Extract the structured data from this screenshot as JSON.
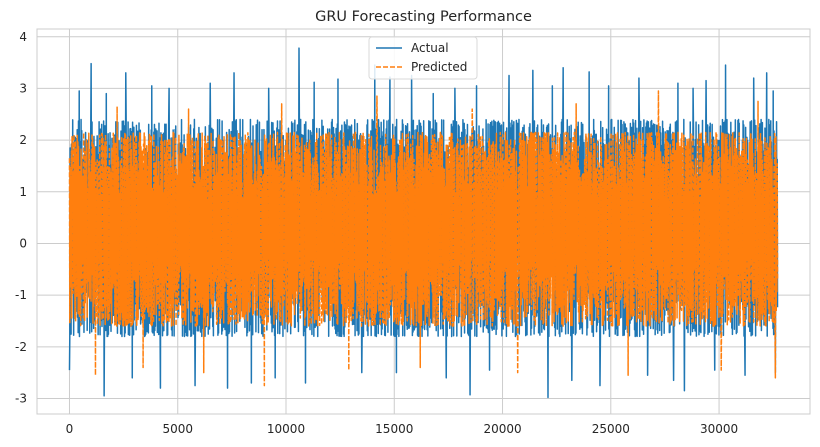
{
  "chart_data": {
    "type": "line",
    "title": "GRU Forecasting Performance",
    "xlabel": "",
    "ylabel": "",
    "xlim": [
      -1500,
      34200
    ],
    "ylim": [
      -3.3,
      4.15
    ],
    "xticks": [
      0,
      5000,
      10000,
      15000,
      20000,
      25000,
      30000
    ],
    "yticks": [
      -3,
      -2,
      -1,
      0,
      1,
      2,
      3,
      4
    ],
    "x_range": [
      0,
      32700
    ],
    "grid": true,
    "legend": "top-center",
    "series": [
      {
        "name": "Actual",
        "color": "#1f77b4",
        "style": "solid",
        "typical_range": [
          -1.8,
          2.4
        ],
        "extremes": {
          "max": 3.78,
          "min": -2.98
        },
        "spikes": [
          [
            450,
            2.95
          ],
          [
            1000,
            3.48
          ],
          [
            1700,
            2.9
          ],
          [
            2600,
            3.3
          ],
          [
            3800,
            3.05
          ],
          [
            4600,
            3.0
          ],
          [
            6500,
            3.1
          ],
          [
            7600,
            3.3
          ],
          [
            9200,
            3.0
          ],
          [
            10600,
            3.78
          ],
          [
            11300,
            3.12
          ],
          [
            12400,
            3.18
          ],
          [
            14100,
            3.45
          ],
          [
            14800,
            3.22
          ],
          [
            15800,
            3.25
          ],
          [
            16800,
            2.9
          ],
          [
            17800,
            3.0
          ],
          [
            18800,
            3.05
          ],
          [
            20300,
            3.25
          ],
          [
            21400,
            3.35
          ],
          [
            22300,
            3.05
          ],
          [
            22800,
            3.4
          ],
          [
            24000,
            3.32
          ],
          [
            24900,
            3.05
          ],
          [
            26300,
            3.2
          ],
          [
            28100,
            3.1
          ],
          [
            28800,
            3.0
          ],
          [
            29400,
            3.15
          ],
          [
            30300,
            3.45
          ],
          [
            31600,
            3.2
          ],
          [
            32200,
            3.3
          ],
          [
            32500,
            2.95
          ],
          [
            0,
            -2.45
          ],
          [
            1600,
            -2.95
          ],
          [
            2900,
            -2.6
          ],
          [
            4200,
            -2.8
          ],
          [
            5800,
            -2.75
          ],
          [
            7300,
            -2.8
          ],
          [
            8400,
            -2.7
          ],
          [
            9500,
            -2.6
          ],
          [
            10900,
            -2.7
          ],
          [
            13500,
            -2.5
          ],
          [
            15100,
            -2.5
          ],
          [
            17400,
            -2.6
          ],
          [
            18500,
            -2.93
          ],
          [
            19400,
            -2.45
          ],
          [
            22100,
            -2.98
          ],
          [
            23200,
            -2.65
          ],
          [
            24500,
            -2.75
          ],
          [
            26700,
            -2.55
          ],
          [
            27900,
            -2.65
          ],
          [
            28400,
            -2.85
          ],
          [
            29800,
            -2.45
          ],
          [
            31200,
            -2.55
          ],
          [
            32600,
            -2.5
          ]
        ]
      },
      {
        "name": "Predicted",
        "color": "#ff7f0e",
        "style": "dashed",
        "typical_range": [
          -1.6,
          2.15
        ],
        "extremes": {
          "max": 2.95,
          "min": -2.75
        },
        "spikes": [
          [
            2200,
            2.65
          ],
          [
            5500,
            2.6
          ],
          [
            9800,
            2.7
          ],
          [
            14200,
            2.85
          ],
          [
            18600,
            2.6
          ],
          [
            23400,
            2.7
          ],
          [
            27200,
            2.95
          ],
          [
            31800,
            2.75
          ],
          [
            1200,
            -2.55
          ],
          [
            3400,
            -2.4
          ],
          [
            6200,
            -2.5
          ],
          [
            9000,
            -2.75
          ],
          [
            12900,
            -2.45
          ],
          [
            16200,
            -2.4
          ],
          [
            20700,
            -2.5
          ],
          [
            25800,
            -2.55
          ],
          [
            30100,
            -2.45
          ],
          [
            32600,
            -2.6
          ]
        ]
      }
    ]
  }
}
